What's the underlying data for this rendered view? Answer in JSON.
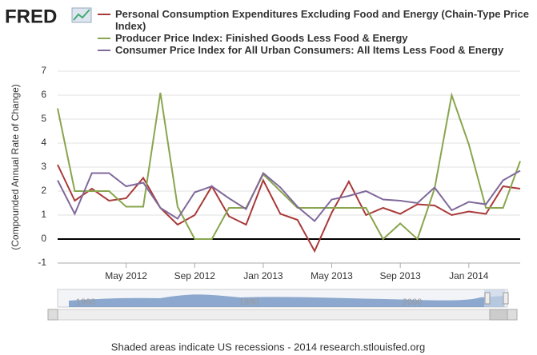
{
  "chart_data": {
    "type": "line",
    "logo": "FRED",
    "y_axis_label": "(Compounded Annual Rate of Change)",
    "footer": "Shaded areas indicate US recessions - 2014 research.stlouisfed.org",
    "navigator_labels": [
      "1960",
      "1980",
      "2000"
    ],
    "x": [
      "2012-01",
      "2012-02",
      "2012-03",
      "2012-04",
      "2012-05",
      "2012-06",
      "2012-07",
      "2012-08",
      "2012-09",
      "2012-10",
      "2012-11",
      "2012-12",
      "2013-01",
      "2013-02",
      "2013-03",
      "2013-04",
      "2013-05",
      "2013-06",
      "2013-07",
      "2013-08",
      "2013-09",
      "2013-10",
      "2013-11",
      "2013-12",
      "2014-01",
      "2014-02",
      "2014-03",
      "2014-04"
    ],
    "xlim": [
      "2012-01",
      "2014-04"
    ],
    "xticks": [
      {
        "value": "2012-05",
        "label": "May 2012"
      },
      {
        "value": "2012-09",
        "label": "Sep 2012"
      },
      {
        "value": "2013-01",
        "label": "Jan 2013"
      },
      {
        "value": "2013-05",
        "label": "May 2013"
      },
      {
        "value": "2013-09",
        "label": "Sep 2013"
      },
      {
        "value": "2014-01",
        "label": "Jan 2014"
      }
    ],
    "ylim": [
      -1,
      7
    ],
    "yticks": [
      -1,
      0,
      1,
      2,
      3,
      4,
      5,
      6,
      7
    ],
    "grid": true,
    "series": [
      {
        "name": "Personal Consumption Expenditures Excluding Food and Energy (Chain-Type Price Index)",
        "color": "#aa3a3a",
        "values": [
          3.1,
          1.6,
          2.1,
          1.6,
          1.7,
          2.55,
          1.3,
          0.6,
          1.0,
          2.2,
          0.95,
          0.6,
          2.45,
          1.05,
          0.8,
          -0.5,
          1.1,
          2.4,
          1.0,
          1.3,
          1.05,
          1.45,
          1.4,
          1.0,
          1.15,
          1.05,
          2.2,
          2.1
        ]
      },
      {
        "name": "Producer Price Index: Finished Goods Less Food & Energy",
        "color": "#89a54e",
        "values": [
          5.45,
          2.0,
          2.0,
          2.0,
          1.35,
          1.35,
          6.1,
          1.35,
          0,
          0,
          1.3,
          1.3,
          2.7,
          2.0,
          1.3,
          1.3,
          1.3,
          1.3,
          1.3,
          0,
          0.65,
          0,
          2.1,
          6.0,
          3.95,
          1.3,
          1.3,
          3.25
        ]
      },
      {
        "name": "Consumer Price Index for All Urban Consumers: All Items Less Food & Energy",
        "color": "#80699b",
        "values": [
          2.45,
          1.05,
          2.75,
          2.75,
          2.2,
          2.35,
          1.3,
          0.85,
          1.95,
          2.2,
          1.7,
          1.25,
          2.75,
          2.15,
          1.35,
          0.75,
          1.65,
          1.8,
          2.0,
          1.65,
          1.6,
          1.5,
          2.15,
          1.2,
          1.55,
          1.45,
          2.45,
          2.85
        ]
      }
    ]
  }
}
